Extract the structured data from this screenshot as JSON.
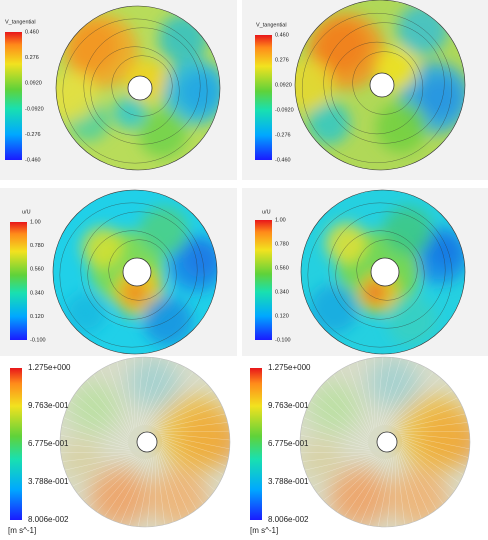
{
  "panels": [
    {
      "title": "V_tangential",
      "colorbar_labels": [
        "0.460",
        "0.276",
        "0.0920",
        "-0.0920",
        "-0.276",
        "-0.460"
      ]
    },
    {
      "title": "V_tangential",
      "colorbar_labels": [
        "0.460",
        "0.276",
        "0.0920",
        "-0.0920",
        "-0.276",
        "-0.460"
      ]
    },
    {
      "title": "u/U",
      "colorbar_labels": [
        "1.00",
        "0.780",
        "0.560",
        "0.340",
        "0.120",
        "-0.100"
      ]
    },
    {
      "title": "u/U",
      "colorbar_labels": [
        "1.00",
        "0.780",
        "0.560",
        "0.340",
        "0.120",
        "-0.100"
      ]
    },
    {
      "colorbar_labels": [
        "1.275e+000",
        "9.763e-001",
        "6.775e-001",
        "3.788e-001",
        "8.006e-002"
      ],
      "unit": "[m s^-1]"
    },
    {
      "colorbar_labels": [
        "1.275e+000",
        "9.763e-001",
        "6.775e-001",
        "3.788e-001",
        "8.006e-002"
      ],
      "unit": "[m s^-1]"
    }
  ]
}
